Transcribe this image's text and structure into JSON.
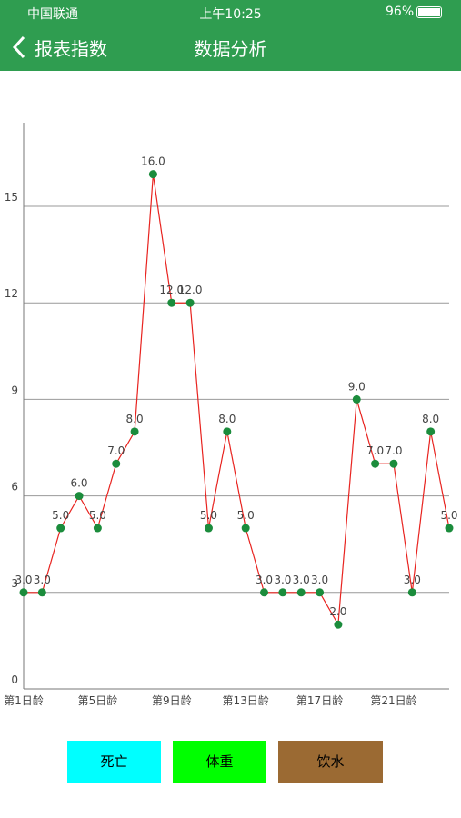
{
  "status_bar": {
    "carrier": "中国联通",
    "time": "上午10:25",
    "battery": "96%"
  },
  "nav": {
    "back": "报表指数",
    "title": "数据分析"
  },
  "chart_data": {
    "type": "line",
    "categories": [
      "第1日龄",
      null,
      null,
      null,
      "第5日龄",
      null,
      null,
      null,
      "第9日龄",
      null,
      null,
      null,
      "第13日龄",
      null,
      null,
      null,
      "第17日龄",
      null,
      null,
      null,
      "第21日龄",
      null,
      null,
      null
    ],
    "values": [
      3,
      3,
      5,
      6,
      5,
      7,
      8,
      16,
      12,
      12,
      5,
      8,
      5,
      3,
      3,
      3,
      3,
      2,
      9,
      7,
      7,
      3,
      8,
      5
    ],
    "value_labels": [
      "3.0",
      "3.0",
      "5.0",
      "6.0",
      "5.0",
      "7.0",
      "8.0",
      "16.0",
      "12.0",
      "12.0",
      "5.0",
      "8.0",
      "5.0",
      "3.0",
      "3.0",
      "3.0",
      "3.0",
      "2.0",
      "9.0",
      "7.0",
      "7.0",
      "3.0",
      "8.0",
      "5.0"
    ],
    "color": "#e8231f",
    "marker_color": "#1b8c3c",
    "ylim": [
      0,
      17.6
    ],
    "yticks": [
      0,
      3,
      6,
      9,
      12,
      15
    ],
    "grid": true
  },
  "buttons": [
    {
      "label": "死亡",
      "color": "#00ffff"
    },
    {
      "label": "体重",
      "color": "#00ff00"
    },
    {
      "label": "饮水",
      "color": "#9b6a33"
    }
  ]
}
